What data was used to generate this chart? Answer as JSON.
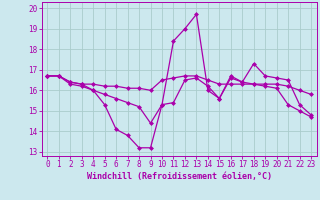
{
  "xlabel": "Windchill (Refroidissement éolien,°C)",
  "background_color": "#cce8ee",
  "grid_color": "#aacccc",
  "line_color": "#aa00aa",
  "xlim": [
    -0.5,
    23.5
  ],
  "ylim": [
    12.8,
    20.3
  ],
  "yticks": [
    13,
    14,
    15,
    16,
    17,
    18,
    19,
    20
  ],
  "xticks": [
    0,
    1,
    2,
    3,
    4,
    5,
    6,
    7,
    8,
    9,
    10,
    11,
    12,
    13,
    14,
    15,
    16,
    17,
    18,
    19,
    20,
    21,
    22,
    23
  ],
  "series1_x": [
    0,
    1,
    2,
    3,
    4,
    5,
    6,
    7,
    8,
    9,
    10,
    11,
    12,
    13,
    14,
    15,
    16,
    17,
    18,
    19,
    20,
    21,
    22,
    23
  ],
  "series1_y": [
    16.7,
    16.7,
    16.3,
    16.2,
    16.0,
    15.3,
    14.1,
    13.8,
    13.2,
    13.2,
    15.3,
    18.4,
    19.0,
    19.7,
    16.0,
    15.6,
    16.7,
    16.4,
    17.3,
    16.7,
    16.6,
    16.5,
    15.3,
    14.8
  ],
  "series2_x": [
    0,
    1,
    2,
    3,
    4,
    5,
    6,
    7,
    8,
    9,
    10,
    11,
    12,
    13,
    14,
    15,
    16,
    17,
    18,
    19,
    20,
    21,
    22,
    23
  ],
  "series2_y": [
    16.7,
    16.7,
    16.4,
    16.3,
    16.3,
    16.2,
    16.2,
    16.1,
    16.1,
    16.0,
    16.5,
    16.6,
    16.7,
    16.7,
    16.5,
    16.3,
    16.3,
    16.3,
    16.3,
    16.3,
    16.3,
    16.2,
    16.0,
    15.8
  ],
  "series3_x": [
    0,
    1,
    2,
    3,
    4,
    5,
    6,
    7,
    8,
    9,
    10,
    11,
    12,
    13,
    14,
    15,
    16,
    17,
    18,
    19,
    20,
    21,
    22,
    23
  ],
  "series3_y": [
    16.7,
    16.7,
    16.4,
    16.3,
    16.0,
    15.8,
    15.6,
    15.4,
    15.2,
    14.4,
    15.3,
    15.4,
    16.5,
    16.6,
    16.2,
    15.6,
    16.6,
    16.4,
    16.3,
    16.2,
    16.1,
    15.3,
    15.0,
    14.7
  ],
  "tick_fontsize": 5.5,
  "xlabel_fontsize": 6.0,
  "marker_size": 2.5,
  "line_width": 0.9
}
